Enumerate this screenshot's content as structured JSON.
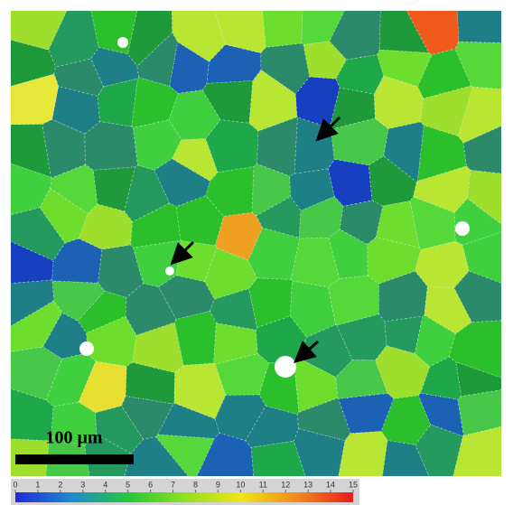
{
  "scale_bar": {
    "label": "100 μm"
  },
  "colorbar": {
    "lim": [
      0,
      15
    ],
    "ticks": [
      0,
      1,
      2,
      3,
      4,
      5,
      6,
      7,
      8,
      9,
      10,
      11,
      12,
      13,
      14,
      15
    ],
    "colors": [
      "#1e2ad8",
      "#1f8ad0",
      "#22c83a",
      "#8ee020",
      "#f2e41c",
      "#f08a1c",
      "#e81c1c"
    ]
  }
}
